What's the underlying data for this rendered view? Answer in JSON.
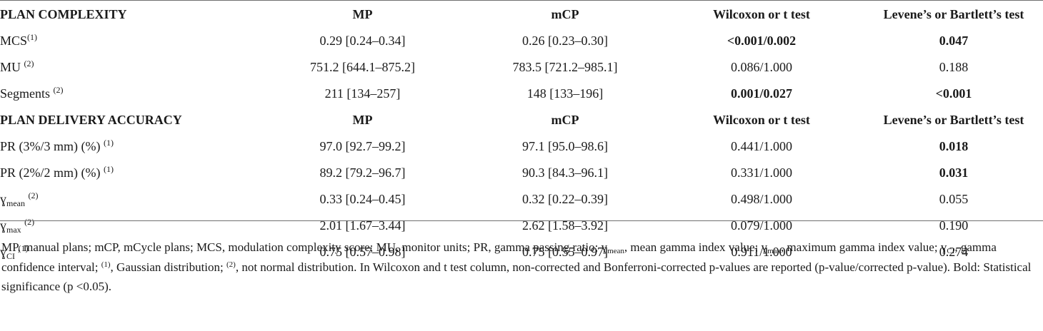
{
  "table": {
    "sections": [
      {
        "header": [
          "PLAN COMPLEXITY",
          "MP",
          "mCP",
          "Wilcoxon or t test",
          "Levene’s or Bartlett’s test"
        ],
        "rows": [
          {
            "label": "MCS",
            "sub": "",
            "sup": "(1)",
            "mp": "0.29 [0.24–0.34]",
            "mcp": "0.26 [0.23–0.30]",
            "wilcoxon": "<0.001/0.002",
            "levene": "0.047"
          },
          {
            "label": "MU",
            "sub": "",
            "sup": "(2)",
            "mp": "751.2 [644.1–875.2]",
            "mcp": "783.5 [721.2–985.1]",
            "wilcoxon": "0.086/1.000",
            "levene": "0.188"
          },
          {
            "label": "Segments",
            "sub": "",
            "sup": "(2)",
            "mp": "211 [134–257]",
            "mcp": "148 [133–196]",
            "wilcoxon": "0.001/0.027",
            "levene": "<0.001"
          }
        ]
      },
      {
        "header": [
          "PLAN DELIVERY ACCURACY",
          "MP",
          "mCP",
          "Wilcoxon or t test",
          "Levene’s or Bartlett’s test"
        ],
        "rows": [
          {
            "label": "PR (3%/3 mm) (%)",
            "sub": "",
            "sup": "(1)",
            "mp": "97.0 [92.7–99.2]",
            "mcp": "97.1 [95.0–98.6]",
            "wilcoxon": "0.441/1.000",
            "levene": "0.018"
          },
          {
            "label": "PR (2%/2 mm) (%)",
            "sub": "",
            "sup": "(1)",
            "mp": "89.2 [79.2–96.7]",
            "mcp": "90.3 [84.3–96.1]",
            "wilcoxon": "0.331/1.000",
            "levene": "0.031"
          },
          {
            "label": "ɣ",
            "sub": "mean",
            "sup": "(2)",
            "mp": "0.33 [0.24–0.45]",
            "mcp": "0.32 [0.22–0.39]",
            "wilcoxon": "0.498/1.000",
            "levene": "0.055"
          },
          {
            "label": "ɣ",
            "sub": "max",
            "sup": "(2)",
            "mp": "2.01 [1.67–3.44]",
            "mcp": "2.62 [1.58–3.92]",
            "wilcoxon": "0.079/1.000",
            "levene": "0.190"
          },
          {
            "label": "ɣ",
            "sub": "CI",
            "sup": "(1)",
            "mp": "0.75 [0.57–0.98]",
            "mcp": "0.75 [0.55–0.97]",
            "wilcoxon": "0.911/1.000",
            "levene": "0.274"
          }
        ]
      }
    ]
  },
  "footnote": {
    "p1": "MP, manual plans; mCP, mCycle plans; MCS, modulation complexity score; MU, monitor units; PR, gamma passing ratio; ",
    "g1": "ɣ",
    "g1_sub": "mean",
    "p2": ", mean gamma index value; ",
    "g2": "ɣ",
    "g2_sub": "max",
    "p3": ", maximum gamma index value; ",
    "g3": "ɣ",
    "g3_sub": "CI",
    "p4": ", gamma confidence interval; ",
    "s1": "(1)",
    "p5": ", Gaussian distribution; ",
    "s2": "(2)",
    "p6": ", not normal distribution. In Wilcoxon and t test column, non-corrected and Bonferroni-corrected p-values are reported (p-value/corrected p-value). Bold: Statistical significance (p <0.05)."
  }
}
